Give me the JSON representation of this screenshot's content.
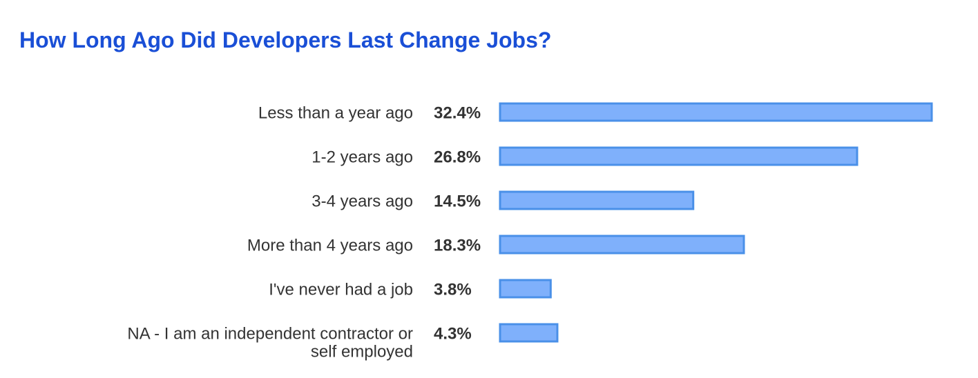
{
  "chart_data": {
    "type": "bar",
    "orientation": "horizontal",
    "title": "How Long Ago Did Developers Last Change Jobs?",
    "categories": [
      "Less than a year ago",
      "1-2 years ago",
      "3-4 years ago",
      "More than 4 years ago",
      "I've never had a job",
      "NA - I am an independent contractor or self employed"
    ],
    "values": [
      32.4,
      26.8,
      14.5,
      18.3,
      3.8,
      4.3
    ],
    "value_labels": [
      "32.4%",
      "26.8%",
      "14.5%",
      "18.3%",
      "3.8%",
      "4.3%"
    ],
    "xlabel": "",
    "ylabel": "",
    "xlim": [
      0,
      32.4
    ],
    "grid": false,
    "legend": "none",
    "colors": {
      "bar_fill": "#7fb0fb",
      "bar_stroke": "#4a90e8",
      "title": "#1a4fd6",
      "text": "#333333"
    }
  }
}
